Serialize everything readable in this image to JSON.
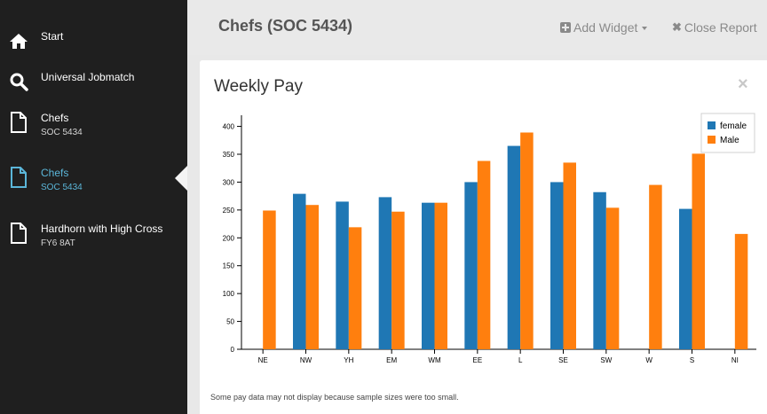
{
  "sidebar": {
    "items": [
      {
        "label": "Start",
        "sub": ""
      },
      {
        "label": "Universal Jobmatch",
        "sub": ""
      },
      {
        "label": "Chefs",
        "sub": "SOC 5434"
      },
      {
        "label": "Chefs",
        "sub": "SOC 5434"
      },
      {
        "label": "Hardhorn with High Cross",
        "sub": "FY6 8AT"
      }
    ],
    "active_index": 3
  },
  "header": {
    "title": "Chefs (SOC 5434)",
    "add_widget_label": "Add Widget",
    "close_report_label": "Close Report"
  },
  "panel": {
    "title": "Weekly Pay",
    "footnote": "Some pay data may not display because sample sizes were too small."
  },
  "colors": {
    "female": "#1f77b4",
    "male": "#ff7f0e",
    "sidebar_bg": "#1f1f1f",
    "active": "#5bb6d9"
  },
  "chart_data": {
    "type": "bar",
    "title": "",
    "xlabel": "",
    "ylabel": "",
    "ylim": [
      0,
      420
    ],
    "yticks": [
      0,
      50,
      100,
      150,
      200,
      250,
      300,
      350,
      400
    ],
    "categories": [
      "NE",
      "NW",
      "YH",
      "EM",
      "WM",
      "EE",
      "L",
      "SE",
      "SW",
      "W",
      "S",
      "NI"
    ],
    "series": [
      {
        "name": "female",
        "values": [
          null,
          279,
          265,
          273,
          263,
          300,
          365,
          300,
          282,
          null,
          252,
          null
        ]
      },
      {
        "name": "Male",
        "values": [
          249,
          259,
          219,
          247,
          263,
          338,
          389,
          335,
          254,
          295,
          351,
          207
        ]
      }
    ],
    "legend": "top-right",
    "grid": false
  }
}
